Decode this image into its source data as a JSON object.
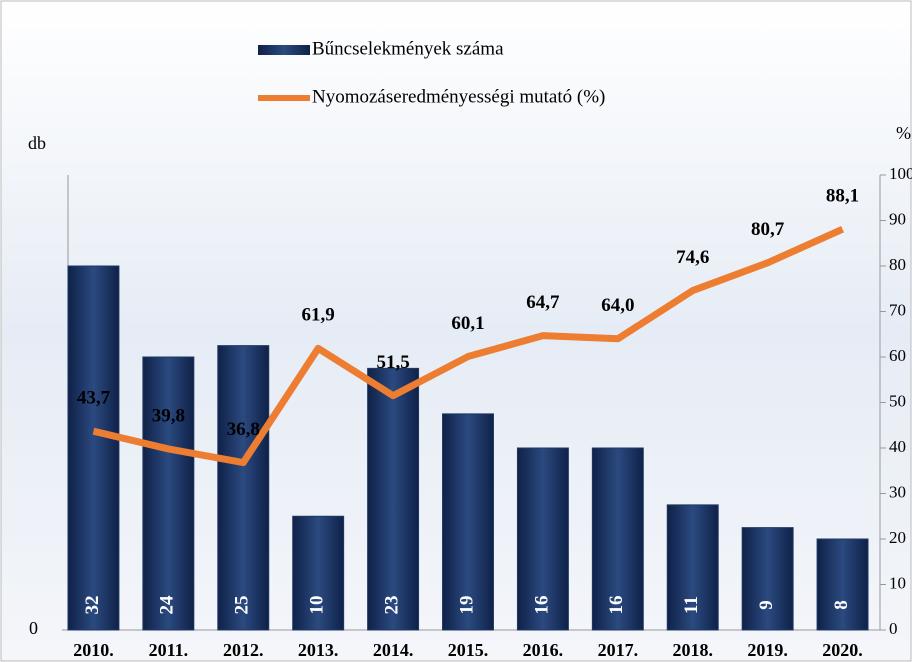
{
  "chart_data": {
    "type": "bar",
    "legend": "top",
    "categories": [
      "2010.",
      "2011.",
      "2012.",
      "2013.",
      "2014.",
      "2015.",
      "2016.",
      "2017.",
      "2018.",
      "2019.",
      "2020."
    ],
    "ylabel": "db",
    "y2label": "%",
    "ylim": [
      0,
      40
    ],
    "yticks": [
      0
    ],
    "y2lim": [
      0,
      100
    ],
    "y2ticks": [
      0,
      10,
      20,
      30,
      40,
      50,
      60,
      70,
      80,
      90,
      100
    ],
    "series": [
      {
        "name": "Bűncselekmények száma",
        "type": "bar",
        "color": "#1f3864",
        "values": [
          32,
          24,
          25,
          10,
          23,
          19,
          16,
          16,
          11,
          9,
          8
        ]
      },
      {
        "name": "Nyomozáseredményességi mutató (%)",
        "type": "line",
        "axis": "y2",
        "color": "#ed7d31",
        "values": [
          43.7,
          39.8,
          36.8,
          61.9,
          51.5,
          60.1,
          64.7,
          64.0,
          74.6,
          80.7,
          88.1
        ],
        "value_labels": [
          "43,7",
          "39,8",
          "36,8",
          "61,9",
          "51,5",
          "60,1",
          "64,7",
          "64,0",
          "74,6",
          "80,7",
          "88,1"
        ]
      }
    ]
  }
}
